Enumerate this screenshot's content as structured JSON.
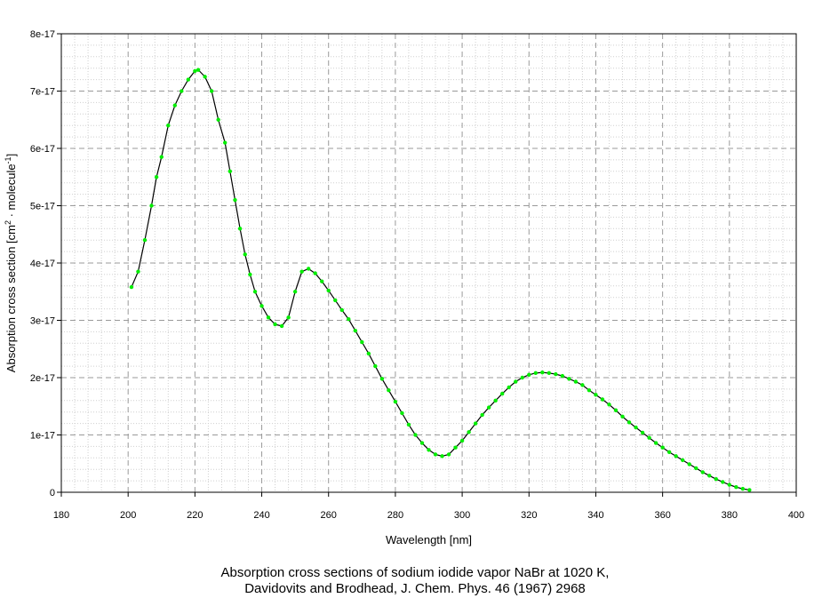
{
  "chart_data": {
    "type": "line",
    "xlabel": "Wavelength [nm]",
    "ylabel": {
      "prefix": "Absorption cross section [cm",
      "sup1": "2",
      "mid": " · molecule",
      "sup2": "-1",
      "suffix": "]"
    },
    "xlim": [
      180,
      400
    ],
    "ylim": [
      0,
      8e-17
    ],
    "x_ticks": [
      180,
      200,
      220,
      240,
      260,
      280,
      300,
      320,
      340,
      360,
      380,
      400
    ],
    "y_ticks": [
      0,
      1e-17,
      2e-17,
      3e-17,
      4e-17,
      5e-17,
      6e-17,
      7e-17,
      8e-17
    ],
    "y_tick_labels": [
      "0",
      "1e-17",
      "2e-17",
      "3e-17",
      "4e-17",
      "5e-17",
      "6e-17",
      "7e-17",
      "8e-17"
    ],
    "grid": true,
    "line_color": "#000000",
    "marker_color": "#00ee00",
    "series": [
      {
        "x": [
          201,
          203,
          205,
          207,
          208.5,
          210,
          212,
          214,
          216,
          218,
          220,
          221,
          223,
          225,
          227,
          229,
          230.5,
          232,
          233.5,
          235,
          236.5,
          238,
          240,
          242,
          244,
          246,
          248,
          250,
          252,
          254,
          256,
          258,
          260,
          262,
          264,
          266,
          268,
          270,
          272,
          274,
          276,
          278,
          280,
          282,
          284,
          286,
          288,
          290,
          292,
          294,
          296,
          298,
          300,
          302,
          304,
          306,
          308,
          310,
          312,
          314,
          316,
          318,
          320,
          322,
          324,
          326,
          328,
          330,
          332,
          334,
          336,
          338,
          340,
          342,
          344,
          346,
          348,
          350,
          352,
          354,
          356,
          358,
          360,
          362,
          364,
          366,
          368,
          370,
          372,
          374,
          376,
          378,
          380,
          382,
          384,
          386
        ],
        "y": [
          3.58e-17,
          3.85e-17,
          4.4e-17,
          5e-17,
          5.5e-17,
          5.85e-17,
          6.4e-17,
          6.75e-17,
          7e-17,
          7.2e-17,
          7.35e-17,
          7.37e-17,
          7.25e-17,
          7e-17,
          6.5e-17,
          6.1e-17,
          5.6e-17,
          5.1e-17,
          4.6e-17,
          4.15e-17,
          3.8e-17,
          3.5e-17,
          3.25e-17,
          3.05e-17,
          2.93e-17,
          2.9e-17,
          3.05e-17,
          3.5e-17,
          3.85e-17,
          3.9e-17,
          3.82e-17,
          3.68e-17,
          3.52e-17,
          3.35e-17,
          3.18e-17,
          3.02e-17,
          2.82e-17,
          2.62e-17,
          2.42e-17,
          2.2e-17,
          1.98e-17,
          1.78e-17,
          1.58e-17,
          1.38e-17,
          1.18e-17,
          1e-17,
          8.6e-18,
          7.4e-18,
          6.6e-18,
          6.3e-18,
          6.6e-18,
          7.8e-18,
          9e-18,
          1.05e-17,
          1.2e-17,
          1.35e-17,
          1.48e-17,
          1.6e-17,
          1.72e-17,
          1.83e-17,
          1.93e-17,
          2e-17,
          2.05e-17,
          2.08e-17,
          2.09e-17,
          2.08e-17,
          2.06e-17,
          2.03e-17,
          1.98e-17,
          1.93e-17,
          1.87e-17,
          1.78e-17,
          1.7e-17,
          1.62e-17,
          1.53e-17,
          1.43e-17,
          1.32e-17,
          1.22e-17,
          1.13e-17,
          1.04e-17,
          9.5e-18,
          8.6e-18,
          7.8e-18,
          7e-18,
          6.3e-18,
          5.6e-18,
          4.9e-18,
          4.2e-18,
          3.5e-18,
          2.9e-18,
          2.3e-18,
          1.8e-18,
          1.3e-18,
          9e-19,
          6e-19,
          4e-19
        ]
      }
    ]
  },
  "caption": {
    "line1": "Absorption cross sections of sodium iodide vapor NaBr at 1020 K,",
    "line2": "Davidovits and Brodhead, J. Chem. Phys. 46 (1967) 2968"
  }
}
